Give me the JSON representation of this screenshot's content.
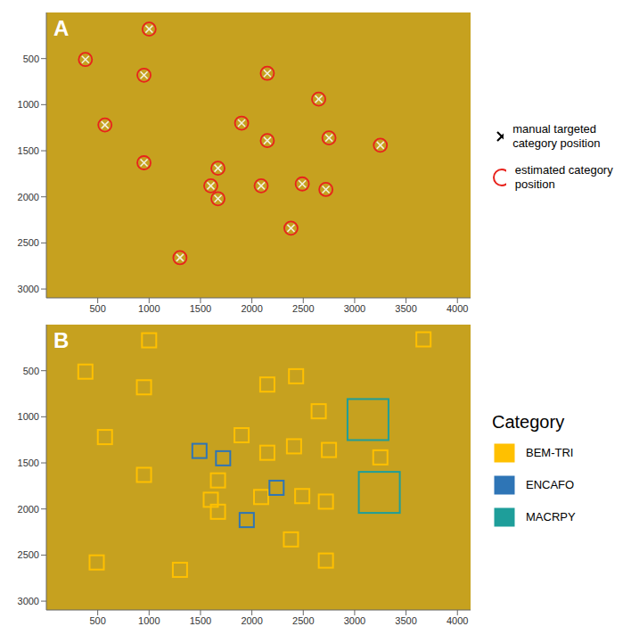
{
  "chart_data": [
    {
      "type": "scatter",
      "title": "A",
      "xlim": [
        0,
        4128
      ],
      "ylim": [
        3096,
        0
      ],
      "xticks": [
        500,
        1000,
        1500,
        2000,
        2500,
        3000,
        3500,
        4000
      ],
      "yticks": [
        500,
        1000,
        1500,
        2000,
        2500,
        3000
      ],
      "grid": false,
      "legend": "right",
      "series": [
        {
          "name": "manual targeted category position",
          "marker": "x",
          "color": "#f4f0dc",
          "x": [
            1000,
            380,
            950,
            2150,
            2650,
            570,
            1900,
            2150,
            2750,
            3250,
            950,
            1670,
            1600,
            1670,
            2090,
            2490,
            2720,
            2380,
            1300
          ],
          "y": [
            180,
            510,
            680,
            660,
            940,
            1220,
            1200,
            1390,
            1360,
            1440,
            1630,
            1690,
            1880,
            2020,
            1880,
            1860,
            1920,
            2340,
            2660
          ]
        },
        {
          "name": "estimated category position",
          "marker": "circle",
          "color": "#e8221c",
          "x": [
            1000,
            380,
            950,
            2150,
            2650,
            570,
            1900,
            2150,
            2750,
            3250,
            950,
            1670,
            1600,
            1670,
            2090,
            2490,
            2720,
            2380,
            1300
          ],
          "y": [
            180,
            510,
            680,
            660,
            940,
            1220,
            1200,
            1390,
            1360,
            1440,
            1630,
            1690,
            1880,
            2020,
            1880,
            1860,
            1920,
            2340,
            2660
          ]
        }
      ]
    },
    {
      "type": "scatter",
      "title": "B",
      "xlim": [
        0,
        4128
      ],
      "ylim": [
        3096,
        0
      ],
      "xticks": [
        500,
        1000,
        1500,
        2000,
        2500,
        3000,
        3500,
        4000
      ],
      "yticks": [
        500,
        1000,
        1500,
        2000,
        2500,
        3000
      ],
      "grid": false,
      "legend": "right",
      "annotations": [
        "Category"
      ],
      "series": [
        {
          "name": "BEM-TRI",
          "marker": "square",
          "color": "#ffc000",
          "x": [
            1000,
            3670,
            380,
            2430,
            950,
            2150,
            2650,
            570,
            1900,
            2150,
            2410,
            2750,
            3250,
            950,
            1670,
            1600,
            1670,
            2090,
            2490,
            2720,
            2380,
            490,
            2720,
            1300
          ],
          "y": [
            170,
            160,
            510,
            560,
            680,
            650,
            940,
            1220,
            1200,
            1390,
            1320,
            1360,
            1440,
            1630,
            1690,
            1900,
            2030,
            1870,
            1860,
            1920,
            2330,
            2580,
            2560,
            2660
          ]
        },
        {
          "name": "ENCAFO",
          "marker": "square",
          "color": "#2e75b6",
          "x": [
            1490,
            1720,
            2240,
            1950
          ],
          "y": [
            1370,
            1450,
            1770,
            2120
          ]
        },
        {
          "name": "MACRPY",
          "marker": "square",
          "color": "#1e9e9a",
          "x": [
            3130,
            3240
          ],
          "y": [
            1030,
            1820
          ]
        }
      ]
    }
  ]
}
